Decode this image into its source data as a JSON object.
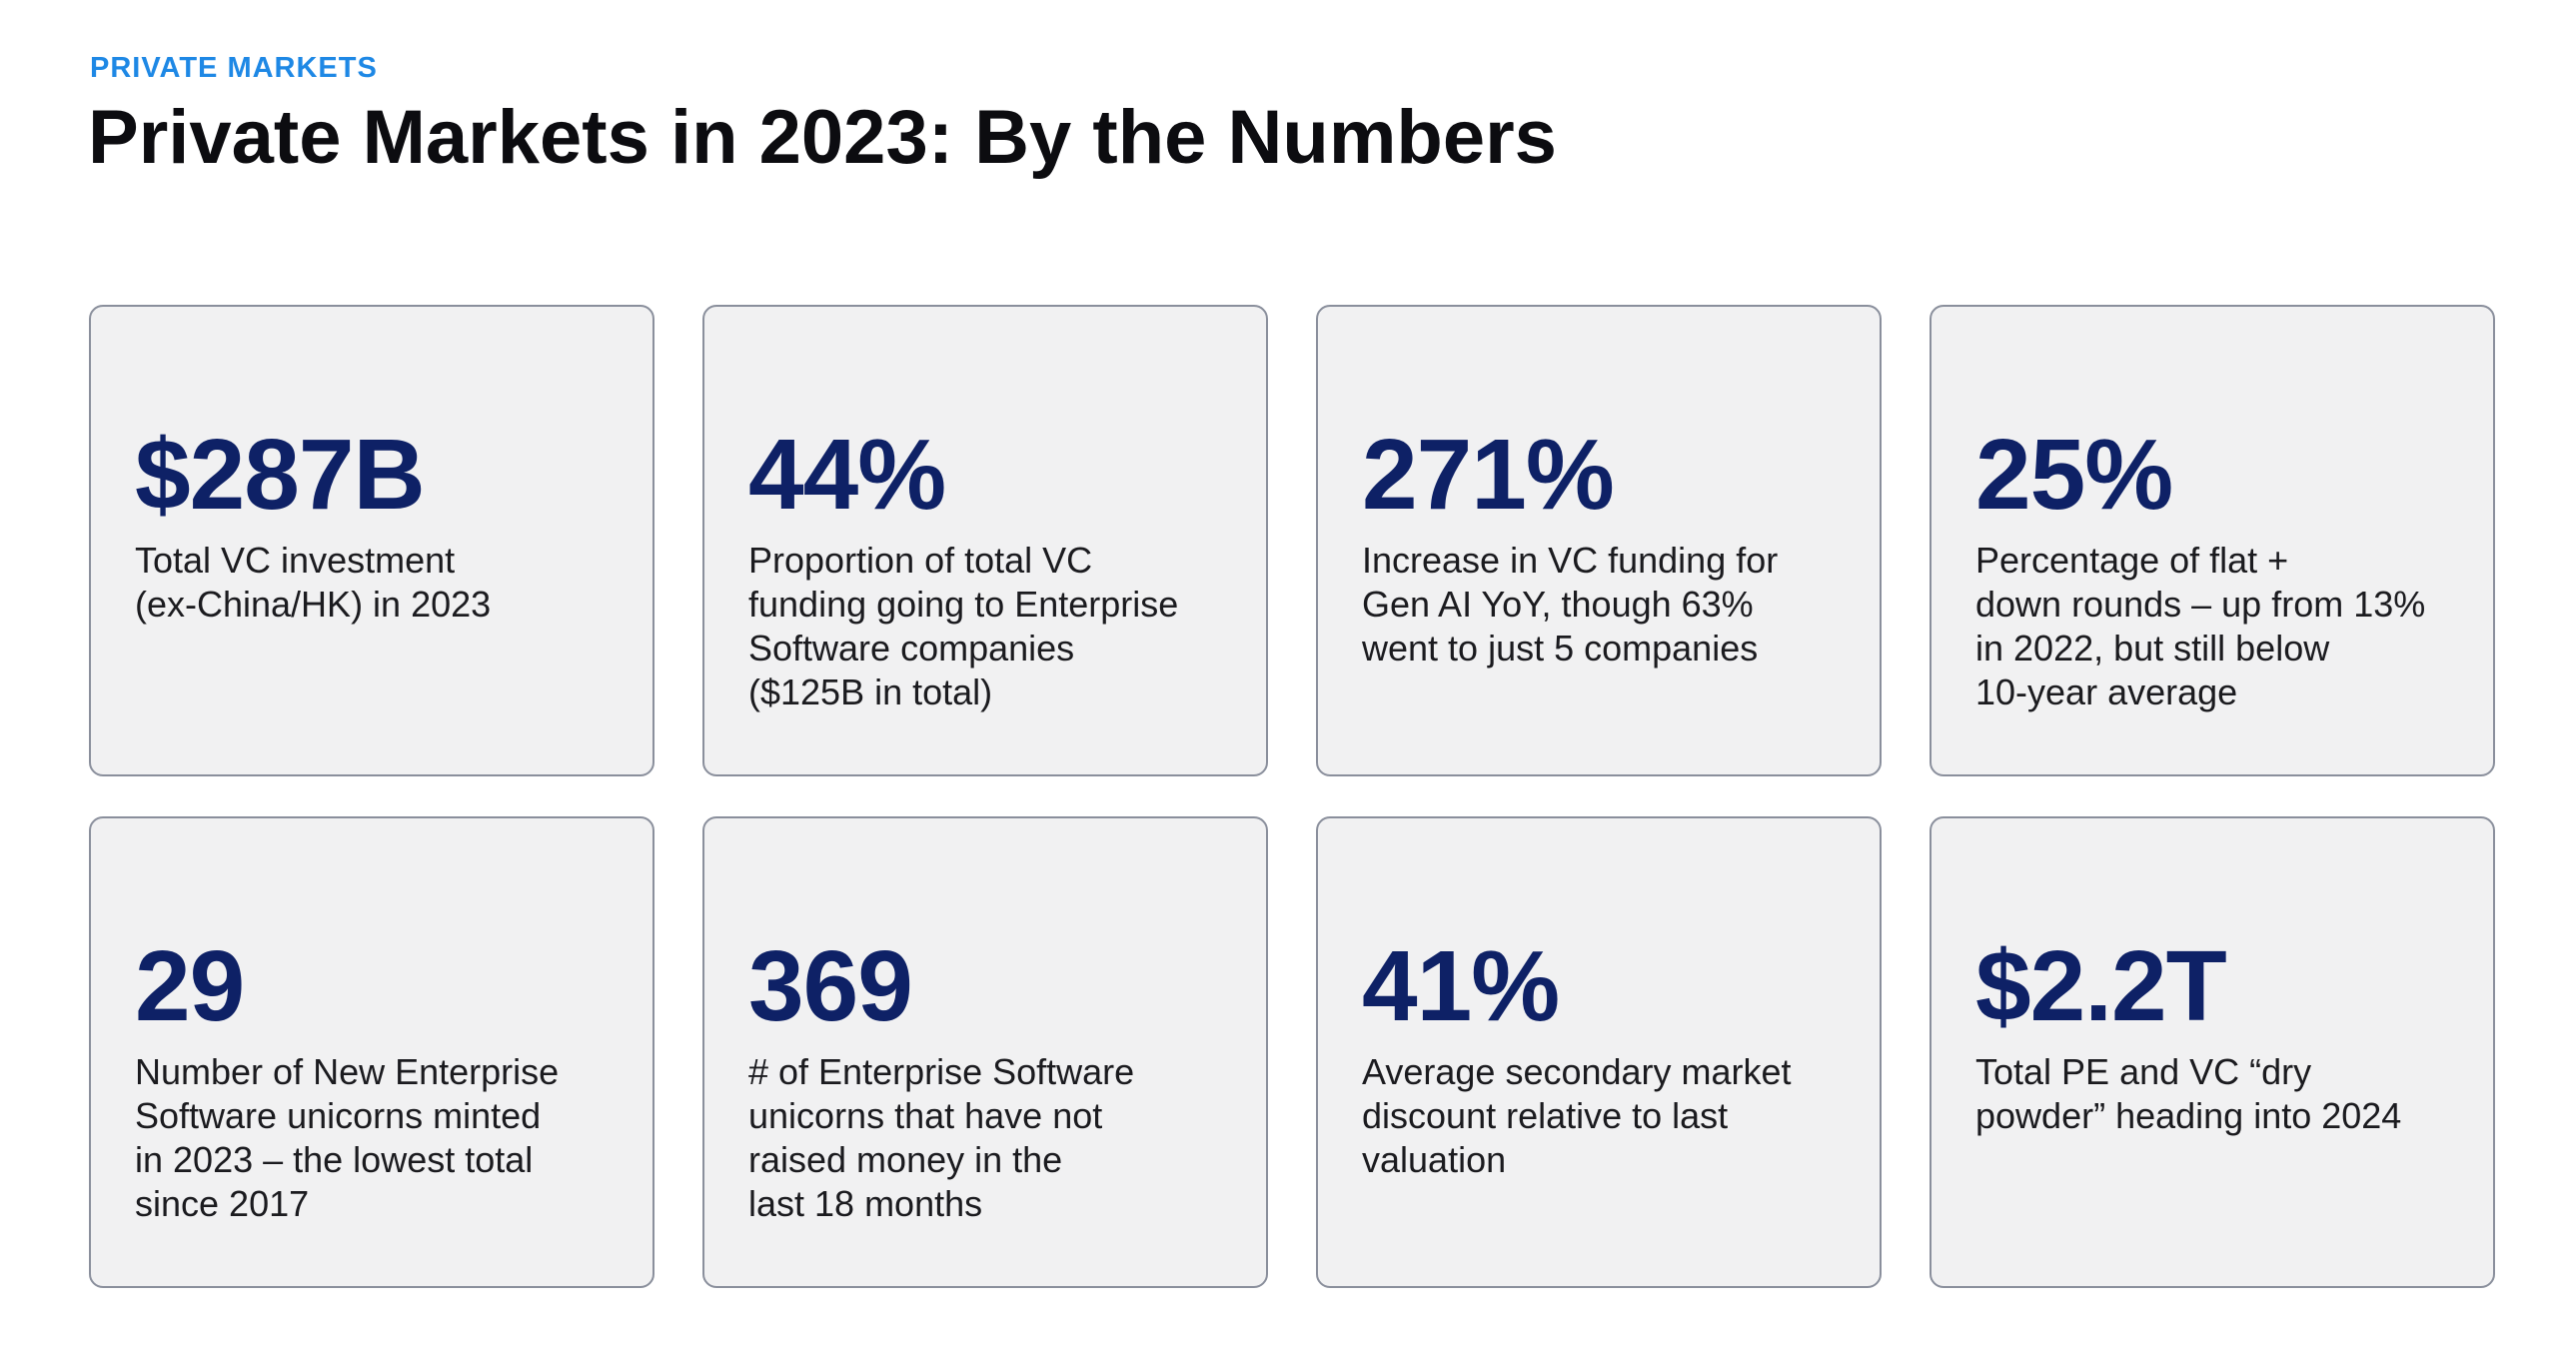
{
  "header": {
    "eyebrow": "PRIVATE MARKETS",
    "title": "Private Markets in 2023: By the Numbers"
  },
  "colors": {
    "eyebrow": "#1e88e5",
    "stat": "#0e2166",
    "card_background": "#f1f1f2",
    "card_border": "#8a8f9c"
  },
  "cards": [
    {
      "stat": "$287B",
      "desc": "Total VC investment\n(ex-China/HK) in 2023"
    },
    {
      "stat": "44%",
      "desc": "Proportion of total VC\nfunding going to Enterprise\nSoftware companies\n($125B in total)"
    },
    {
      "stat": "271%",
      "desc": "Increase in VC funding for\nGen AI YoY, though 63%\nwent to just 5 companies"
    },
    {
      "stat": "25%",
      "desc": "Percentage of flat +\ndown rounds – up from 13%\nin 2022, but still below\n10-year average"
    },
    {
      "stat": "29",
      "desc": "Number of New Enterprise\nSoftware unicorns minted\nin 2023 – the lowest total\nsince 2017"
    },
    {
      "stat": "369",
      "desc": "# of Enterprise Software\nunicorns that have not\nraised money in the\nlast 18 months"
    },
    {
      "stat": "41%",
      "desc": "Average secondary market\ndiscount relative to last\nvaluation"
    },
    {
      "stat": "$2.2T",
      "desc": "Total PE and VC “dry\npowder” heading into 2024"
    }
  ]
}
